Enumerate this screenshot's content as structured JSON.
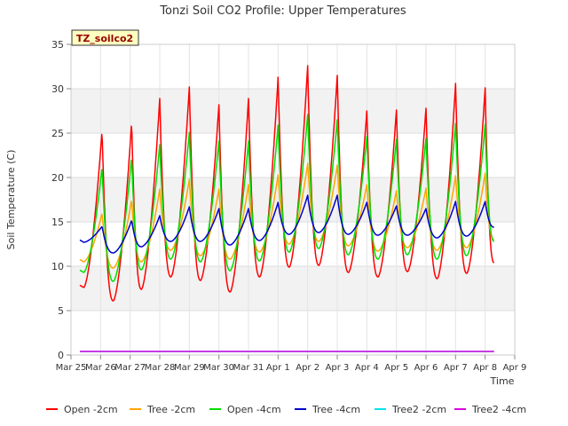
{
  "chart_data": {
    "type": "line",
    "title": "Tonzi Soil CO2 Profile: Upper Temperatures",
    "xlabel": "Time",
    "ylabel": "Soil Temperature (C)",
    "badge": "TZ_soilco2",
    "ylim": [
      0,
      35
    ],
    "xlim": [
      0,
      15
    ],
    "yticks": [
      0,
      5,
      10,
      15,
      20,
      25,
      30,
      35
    ],
    "xticks": [
      0,
      1,
      2,
      3,
      4,
      5,
      6,
      7,
      8,
      9,
      10,
      11,
      12,
      13,
      14,
      15
    ],
    "xtick_labels": [
      "Mar 25",
      "Mar 26",
      "Mar 27",
      "Mar 28",
      "Mar 29",
      "Mar 30",
      "Mar 31",
      "Apr 1",
      "Apr 2",
      "Apr 3",
      "Apr 4",
      "Apr 5",
      "Apr 6",
      "Apr 7",
      "Apr 8",
      "Apr 9"
    ],
    "grid": true,
    "legend_position": "bottom",
    "data_range": [
      0.3,
      14.3
    ],
    "peak_times": [
      1.05,
      2.05,
      3.0,
      4.0,
      5.0,
      6.0,
      7.0,
      8.0,
      9.0,
      10.0,
      11.0,
      12.0,
      13.0,
      14.0
    ],
    "series": [
      {
        "name": "Open -2cm",
        "color": "#ff0000",
        "max": [
          25.3,
          26.3,
          28.9,
          30.2,
          28.2,
          28.9,
          31.3,
          32.6,
          31.5,
          27.5,
          27.6,
          27.8,
          30.6,
          30.1
        ],
        "min": [
          7.6,
          6.1,
          7.4,
          8.8,
          8.4,
          7.1,
          8.8,
          9.9,
          10.1,
          9.3,
          8.8,
          9.4,
          8.6,
          9.2,
          10.4
        ]
      },
      {
        "name": "Tree -2cm",
        "color": "#ffa500",
        "max": [
          16.0,
          17.5,
          18.7,
          19.8,
          18.7,
          19.2,
          20.3,
          21.6,
          21.4,
          19.2,
          18.5,
          18.8,
          20.2,
          20.5
        ],
        "min": [
          10.5,
          9.8,
          10.5,
          11.8,
          11.2,
          10.8,
          11.6,
          12.5,
          12.8,
          12.3,
          11.7,
          12.1,
          11.8,
          12.1,
          13.0
        ]
      },
      {
        "name": "Open -4cm",
        "color": "#00dd00",
        "max": [
          21.2,
          22.3,
          23.7,
          25.1,
          24.1,
          24.1,
          25.9,
          27.1,
          26.5,
          24.6,
          24.3,
          24.4,
          26.1,
          26.0
        ],
        "min": [
          9.3,
          8.3,
          9.6,
          10.8,
          10.5,
          9.5,
          10.6,
          11.6,
          12.0,
          11.3,
          10.8,
          11.3,
          10.8,
          11.2,
          12.8
        ]
      },
      {
        "name": "Tree -4cm",
        "color": "#0000cc",
        "max": [
          14.5,
          15.2,
          15.7,
          16.7,
          16.5,
          16.5,
          17.2,
          18.0,
          18.0,
          17.2,
          16.8,
          16.5,
          17.3,
          17.3
        ],
        "min": [
          12.7,
          11.5,
          12.2,
          12.8,
          12.8,
          12.4,
          12.9,
          13.6,
          13.8,
          13.6,
          13.5,
          13.5,
          13.2,
          13.4,
          14.4
        ]
      },
      {
        "name": "Tree2 -2cm",
        "color": "#00e5ee",
        "constant": 0.4
      },
      {
        "name": "Tree2 -4cm",
        "color": "#dd00dd",
        "constant": 0.4
      }
    ]
  }
}
